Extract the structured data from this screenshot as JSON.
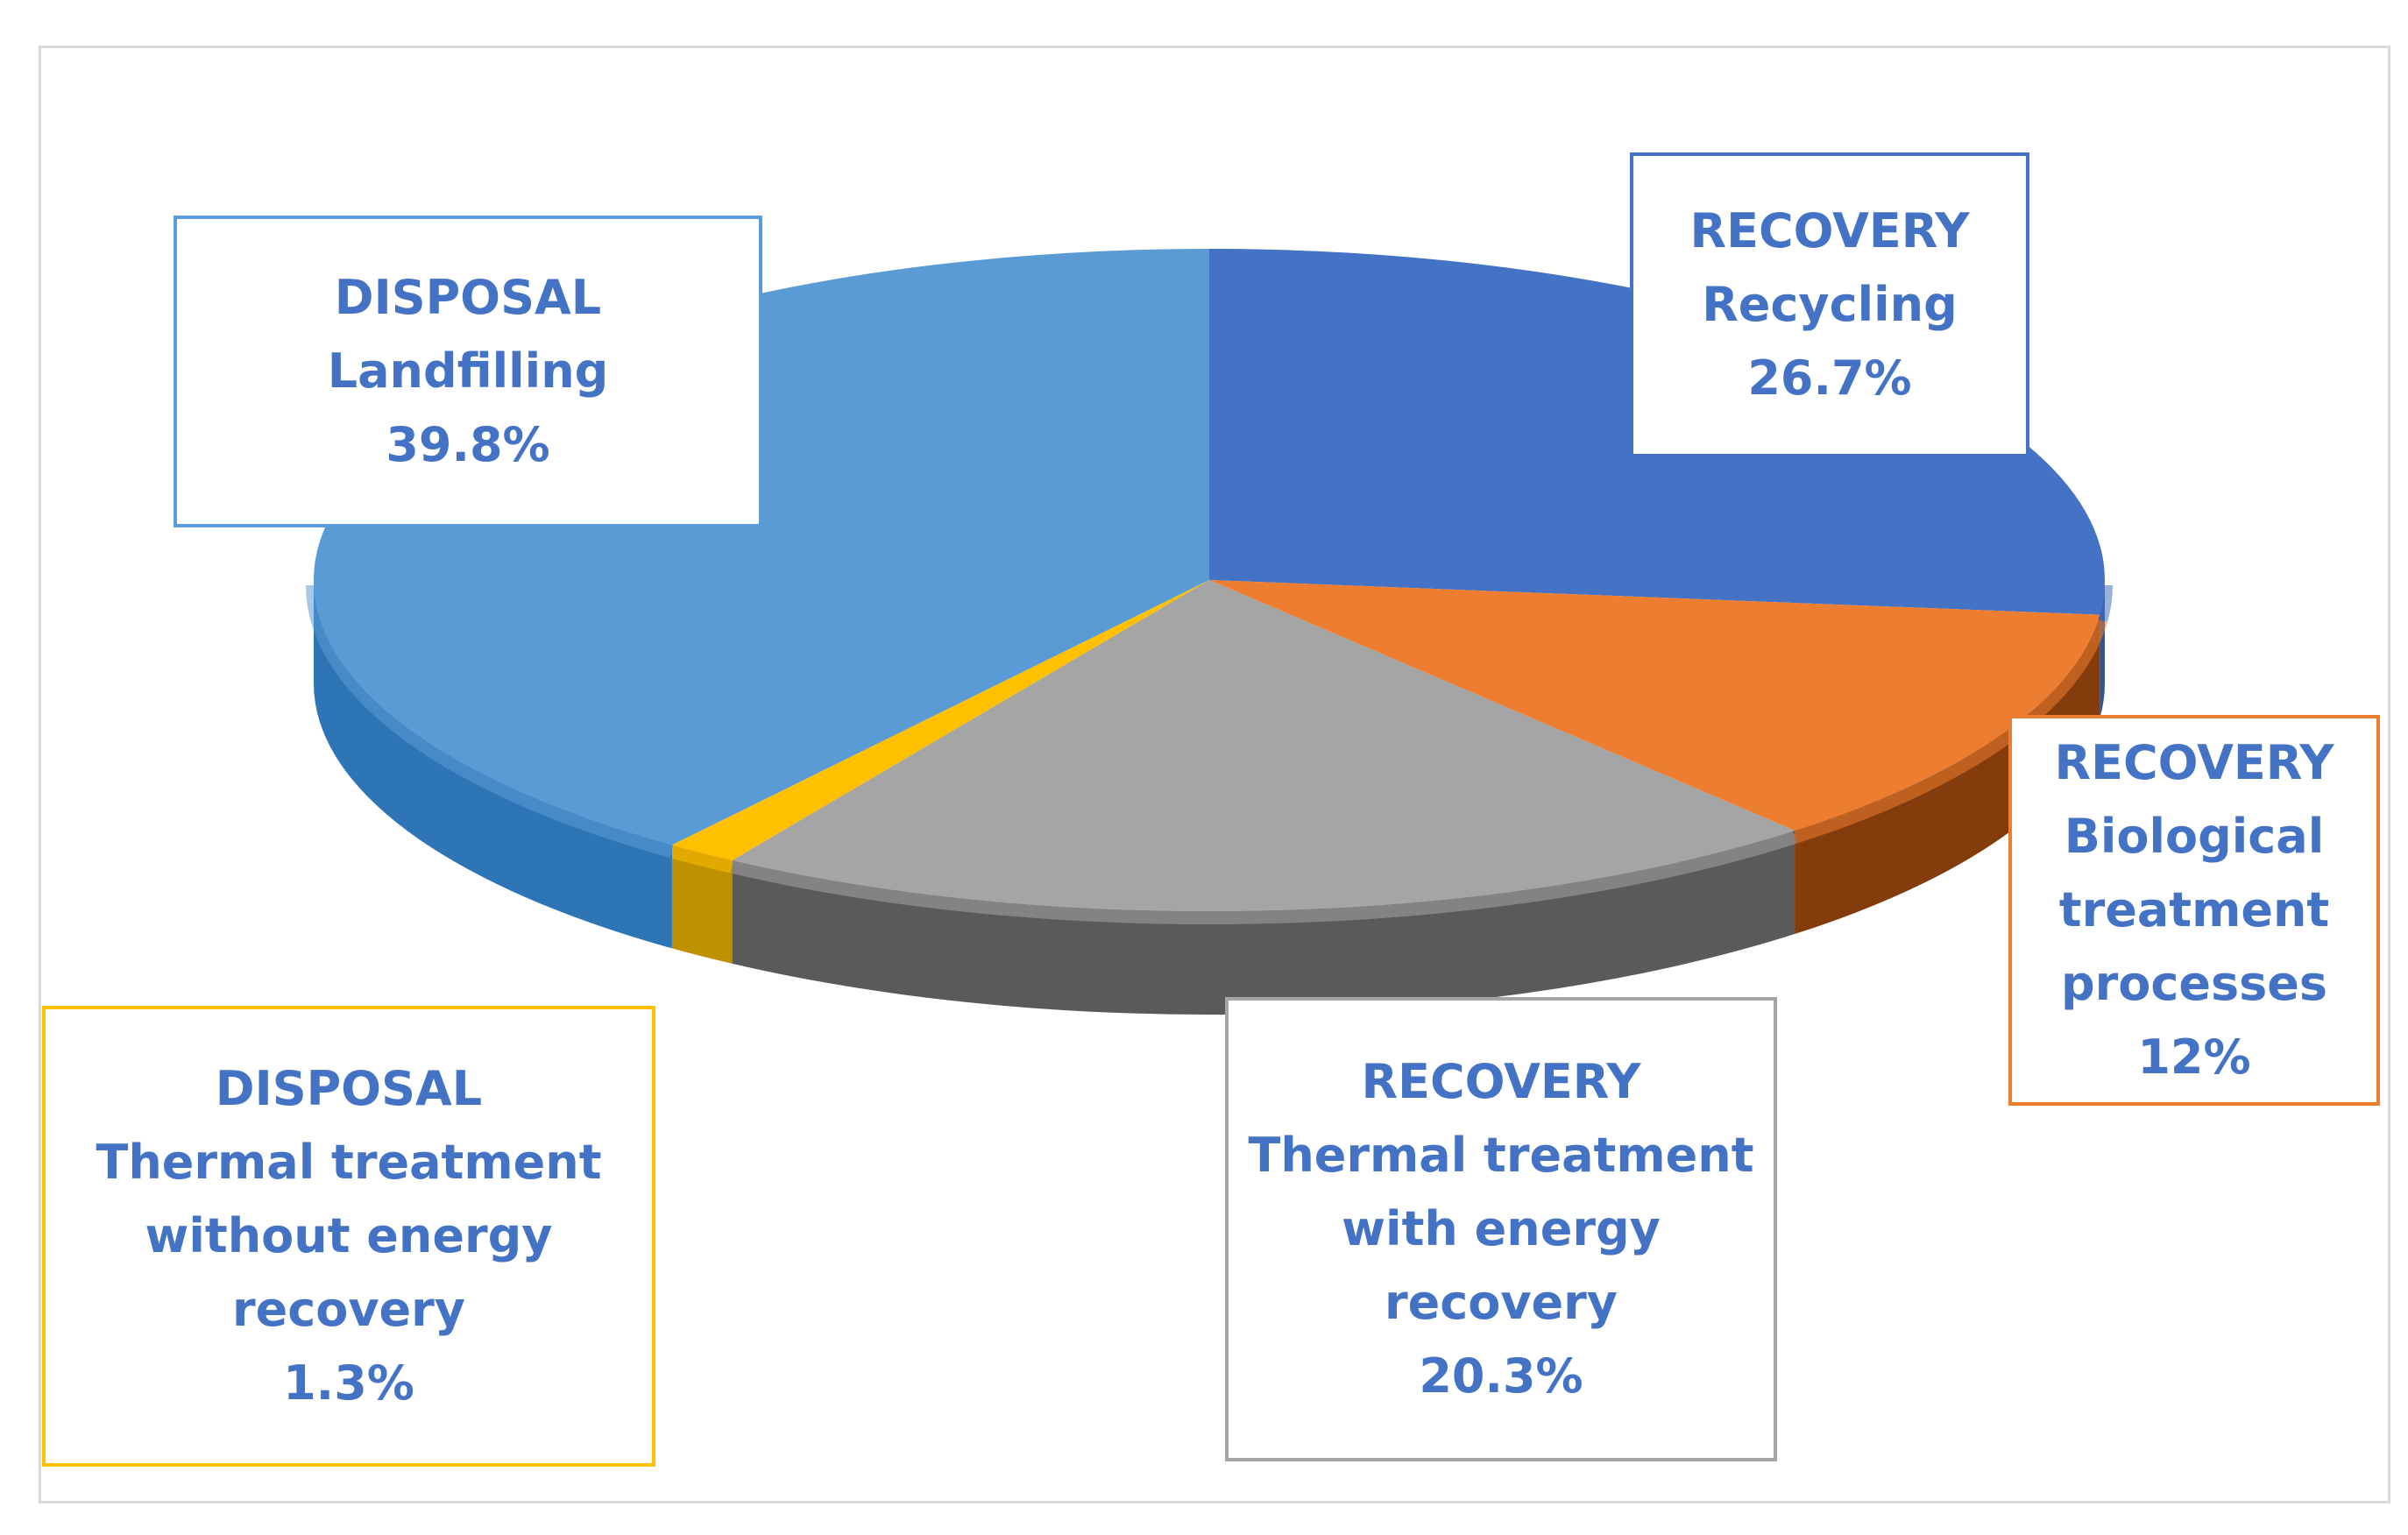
{
  "chart_data": {
    "type": "pie",
    "title": "",
    "slices": [
      {
        "category": "RECOVERY",
        "name": "Recycling",
        "value": 26.7,
        "display": "26.7%",
        "color": "#4472c4",
        "side_color": "#2f5597",
        "label_border": "#4472c4"
      },
      {
        "category": "RECOVERY",
        "name": "Biological treatment processes",
        "value": 12,
        "display": "12%",
        "color": "#ed7d31",
        "side_color": "#843c0c",
        "label_border": "#ed7d31"
      },
      {
        "category": "RECOVERY",
        "name": "Thermal treatment with energy recovery",
        "value": 20.3,
        "display": "20.3%",
        "color": "#a5a5a5",
        "side_color": "#5a5a5a",
        "label_border": "#a5a5a5"
      },
      {
        "category": "DISPOSAL",
        "name": "Thermal treatment without energy recovery",
        "value": 1.3,
        "display": "1.3%",
        "color": "#ffc000",
        "side_color": "#bf9000",
        "label_border": "#ffc000"
      },
      {
        "category": "DISPOSAL",
        "name": "Landfilling",
        "value": 39.8,
        "display": "39.8%",
        "color": "#5b9bd5",
        "side_color": "#2e75b6",
        "label_border": "#5b9bd5"
      }
    ]
  },
  "labels": [
    {
      "lines": [
        "RECOVERY",
        "Recycling",
        "26.7%"
      ]
    },
    {
      "lines": [
        "RECOVERY",
        "Biological",
        "treatment",
        "processes",
        "12%"
      ]
    },
    {
      "lines": [
        "RECOVERY",
        "Thermal treatment",
        "with energy",
        "recovery",
        "20.3%"
      ]
    },
    {
      "lines": [
        "DISPOSAL",
        "Thermal treatment",
        "without energy",
        "recovery",
        "1.3%"
      ]
    },
    {
      "lines": [
        "DISPOSAL",
        "Landfilling",
        "39.8%"
      ]
    }
  ],
  "text_color": "#4472c4"
}
